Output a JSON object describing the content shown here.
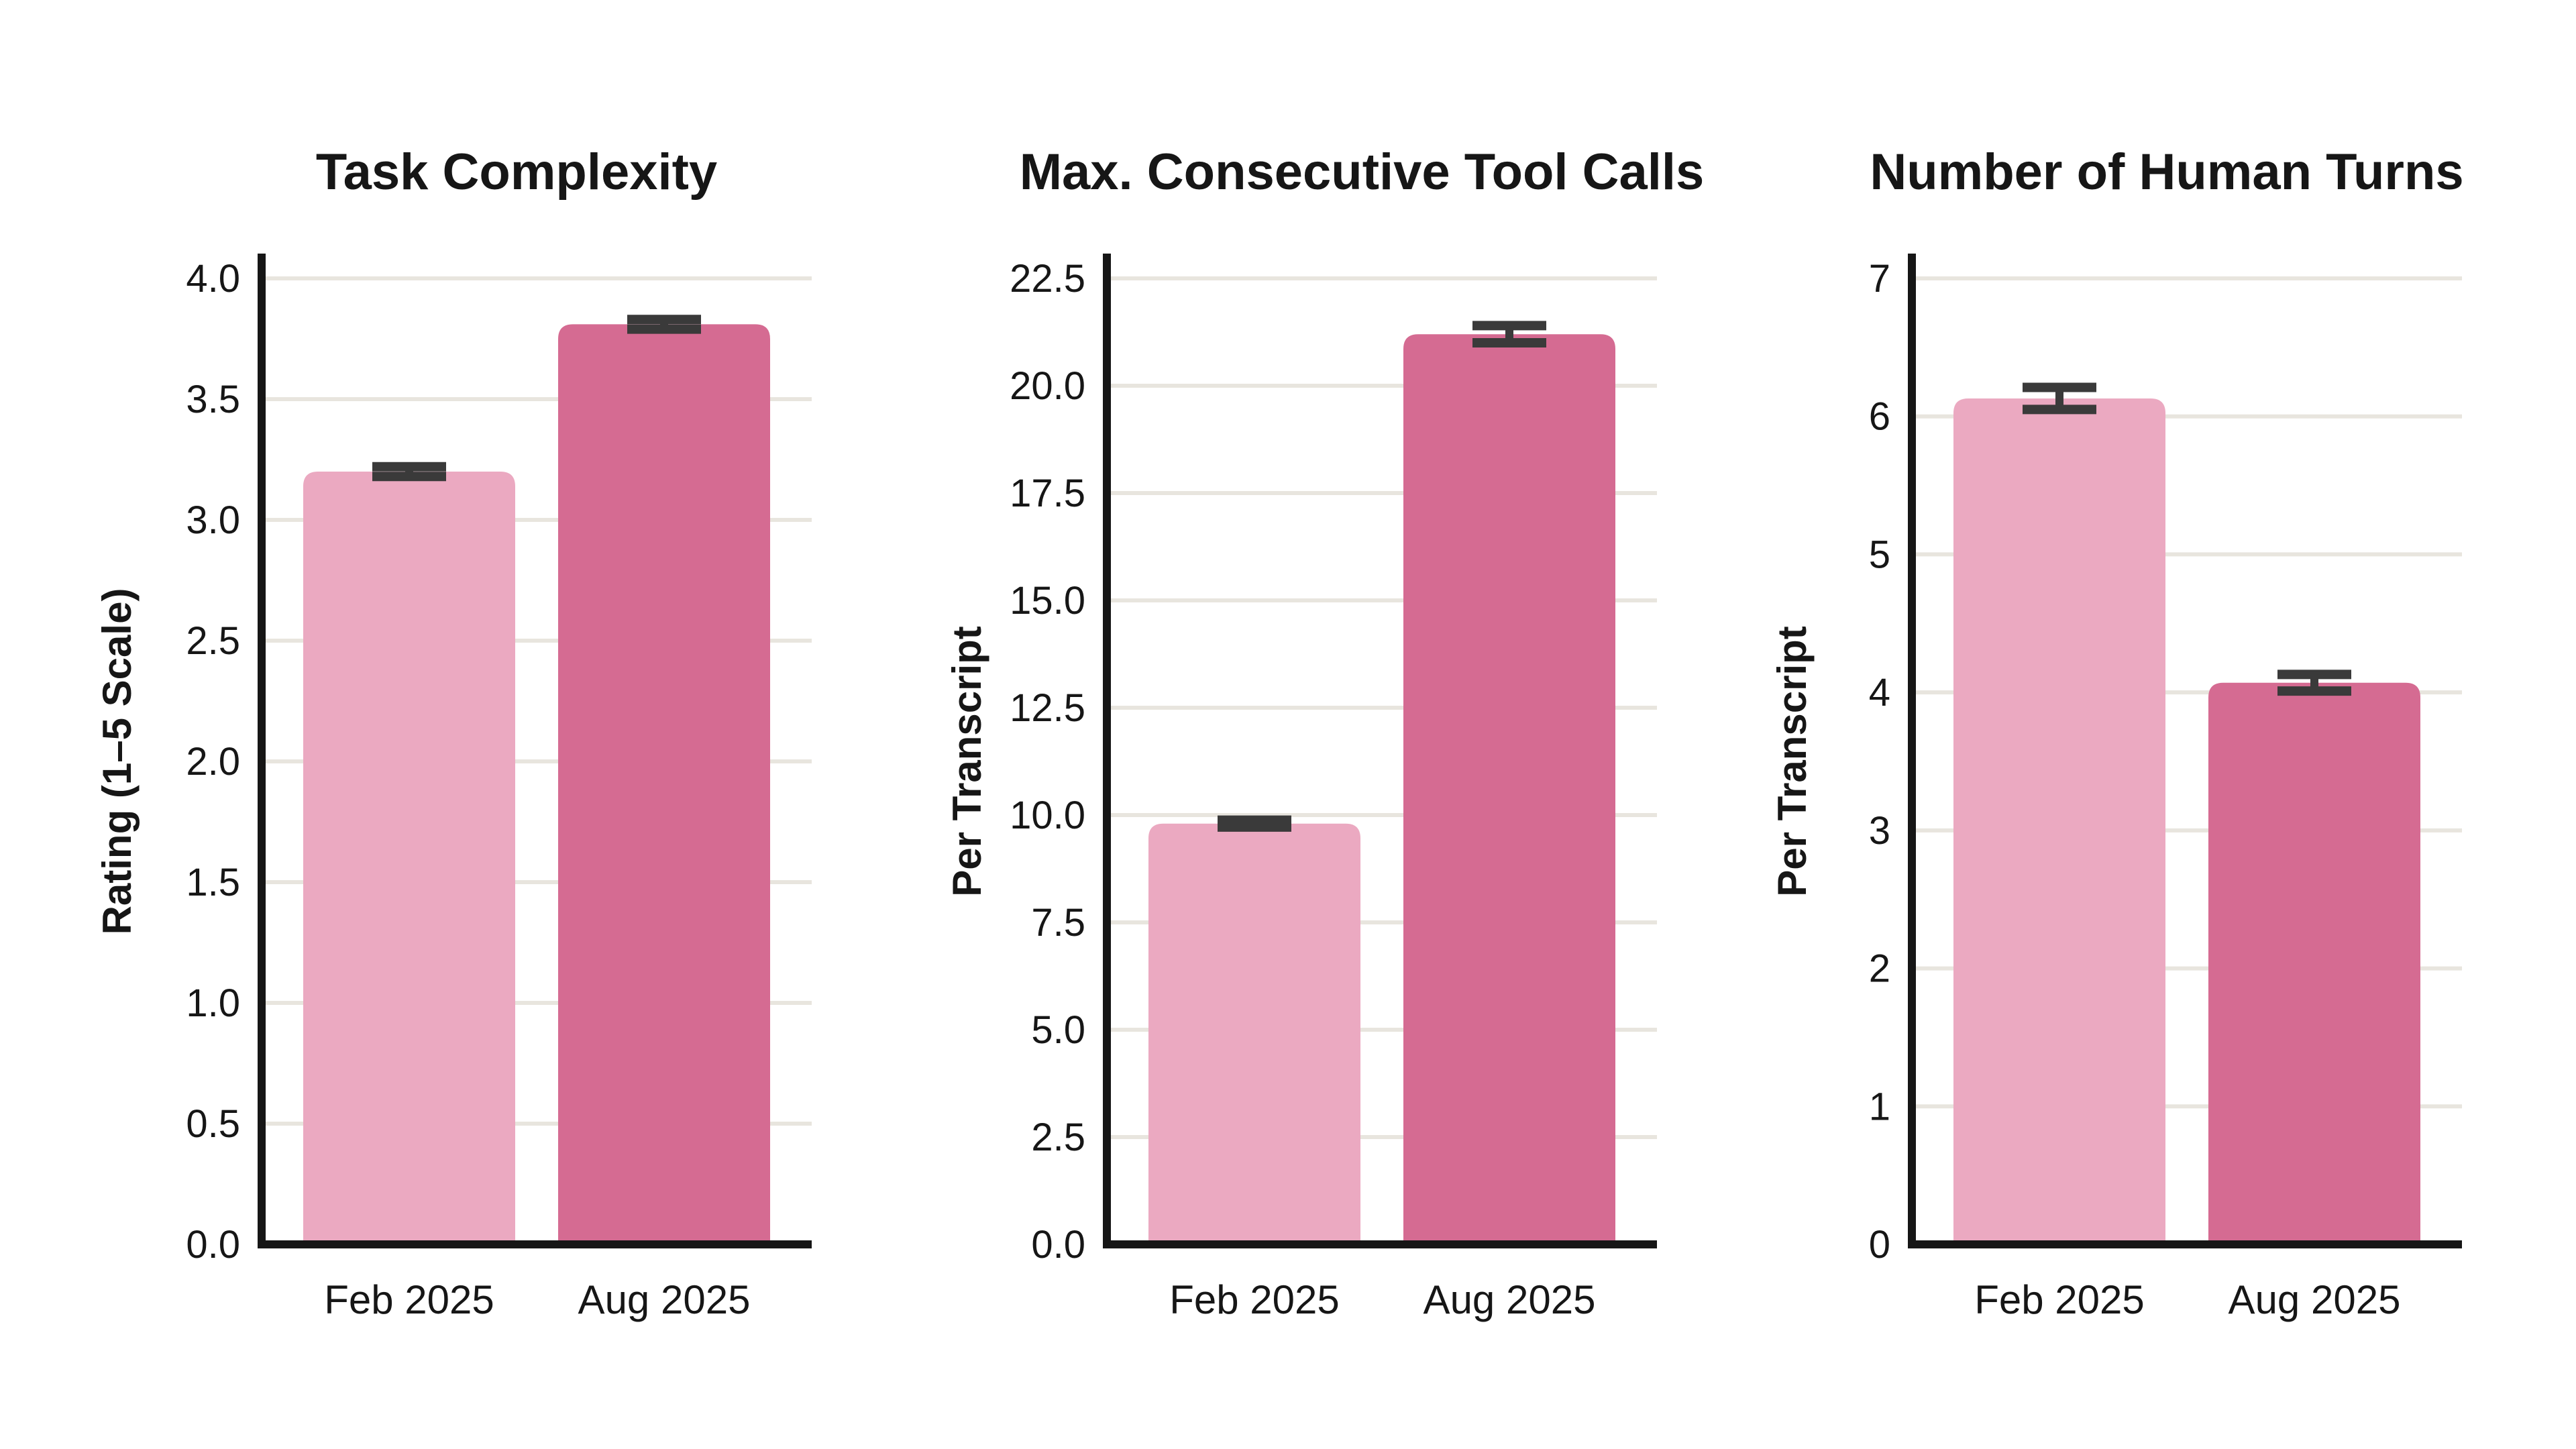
{
  "figure": {
    "background": "#ffffff",
    "text_color": "#161616",
    "grid_color": "#e8e5de",
    "axis_color": "#161616",
    "error_bar_color": "#3a3a3a",
    "bar_colors": [
      "#eba9c1",
      "#d56b92"
    ]
  },
  "chart_data": [
    {
      "type": "bar",
      "title": "Task Complexity",
      "xlabel": "",
      "ylabel": "Rating (1–5 Scale)",
      "categories": [
        "Feb 2025",
        "Aug 2025"
      ],
      "values": [
        3.2,
        3.81
      ],
      "errors": [
        0.02,
        0.02
      ],
      "yticks": [
        0.0,
        0.5,
        1.0,
        1.5,
        2.0,
        2.5,
        3.0,
        3.5,
        4.0
      ],
      "ytick_decimals": 1,
      "ylim": [
        0,
        4.1
      ],
      "grid": true,
      "legend": null
    },
    {
      "type": "bar",
      "title": "Max. Consecutive Tool Calls",
      "xlabel": "",
      "ylabel": "Per Transcript",
      "categories": [
        "Feb 2025",
        "Aug 2025"
      ],
      "values": [
        9.8,
        21.2
      ],
      "errors": [
        0.08,
        0.2
      ],
      "yticks": [
        0.0,
        2.5,
        5.0,
        7.5,
        10.0,
        12.5,
        15.0,
        17.5,
        20.0,
        22.5
      ],
      "ytick_decimals": 1,
      "ylim": [
        0,
        23.1
      ],
      "grid": true,
      "legend": null
    },
    {
      "type": "bar",
      "title": "Number of Human Turns",
      "xlabel": "",
      "ylabel": "Per Transcript",
      "categories": [
        "Feb 2025",
        "Aug 2025"
      ],
      "values": [
        6.13,
        4.07
      ],
      "errors": [
        0.08,
        0.06
      ],
      "yticks": [
        0,
        1,
        2,
        3,
        4,
        5,
        6,
        7
      ],
      "ytick_decimals": 0,
      "ylim": [
        0,
        7.2
      ],
      "grid": true,
      "legend": null
    }
  ]
}
